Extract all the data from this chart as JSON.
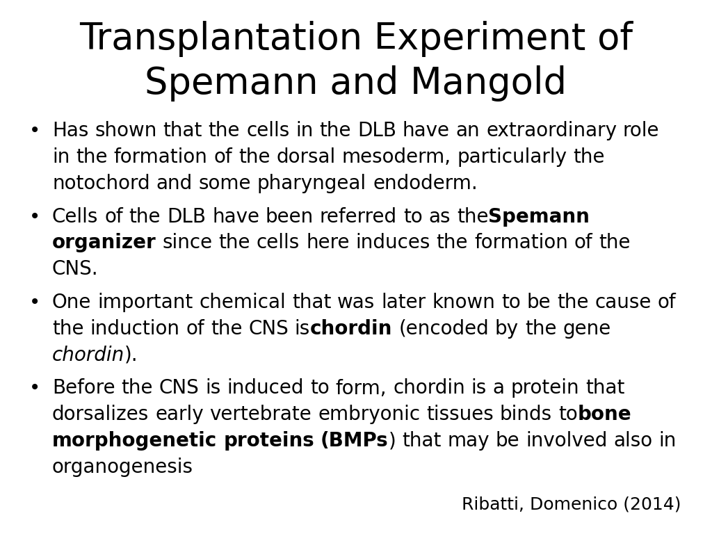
{
  "title": "Transplantation Experiment of\nSpemann and Mangold",
  "background_color": "#ffffff",
  "text_color": "#000000",
  "title_fontsize": 38,
  "bullet_fontsize": 20,
  "citation": "Ribatti, Domenico (2014)",
  "citation_fontsize": 18,
  "bullets": [
    [
      {
        "text": "Has shown that the cells in the DLB have an extraordinary role in the formation of the dorsal mesoderm, particularly the notochord and some pharyngeal endoderm.",
        "bold": false,
        "italic": false
      }
    ],
    [
      {
        "text": "Cells of the DLB have been referred to as the ",
        "bold": false,
        "italic": false
      },
      {
        "text": "Spemann organizer",
        "bold": true,
        "italic": false
      },
      {
        "text": " since the cells here induces the formation of the CNS.",
        "bold": false,
        "italic": false
      }
    ],
    [
      {
        "text": "One important chemical that was later known to be the cause of the induction of the CNS is ",
        "bold": false,
        "italic": false
      },
      {
        "text": "chordin",
        "bold": true,
        "italic": false
      },
      {
        "text": " (encoded by the gene ",
        "bold": false,
        "italic": false
      },
      {
        "text": "chordin",
        "bold": false,
        "italic": true
      },
      {
        "text": ").",
        "bold": false,
        "italic": false
      }
    ],
    [
      {
        "text": "Before the CNS is induced to form, chordin is a protein that dorsalizes early vertebrate embryonic tissues binds to ",
        "bold": false,
        "italic": false
      },
      {
        "text": "bone morphogenetic proteins (BMPs",
        "bold": true,
        "italic": false
      },
      {
        "text": ") that may be involved also in organogenesis",
        "bold": false,
        "italic": false
      }
    ]
  ]
}
